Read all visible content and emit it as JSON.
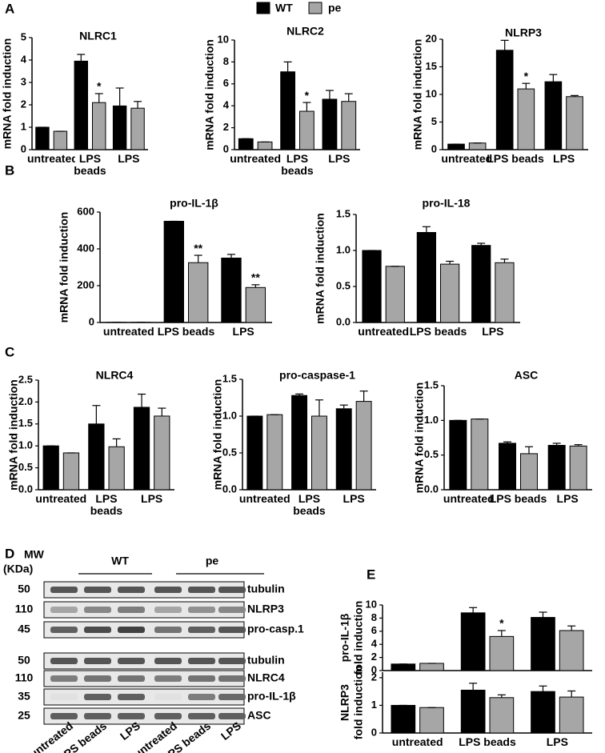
{
  "figure": {
    "panel_labels": [
      "A",
      "B",
      "C",
      "D",
      "E"
    ]
  },
  "chart_data": [
    {
      "type": "bar",
      "title": "NLRC1",
      "ylabel": "mRNA fold induction",
      "categories": [
        "untreated",
        "LPS beads",
        "LPS"
      ],
      "ylim": [
        0,
        5
      ],
      "yticks": [
        0,
        1,
        2,
        3,
        4,
        5
      ],
      "series": [
        {
          "name": "WT",
          "color": "#000000",
          "values": [
            1,
            3.95,
            1.95
          ],
          "errors": [
            0,
            0.3,
            0.8
          ]
        },
        {
          "name": "pe",
          "color": "#a6a6a6",
          "values": [
            0.82,
            2.1,
            1.85
          ],
          "errors": [
            0,
            0.4,
            0.3
          ],
          "labels": [
            null,
            "*",
            null
          ]
        }
      ]
    },
    {
      "type": "bar",
      "title": "NLRC2",
      "ylabel": "mRNA fold induction",
      "categories": [
        "untreated",
        "LPS beads",
        "LPS"
      ],
      "ylim": [
        0,
        10
      ],
      "yticks": [
        0,
        2,
        4,
        6,
        8,
        10
      ],
      "series": [
        {
          "name": "WT",
          "color": "#000000",
          "values": [
            1,
            7.1,
            4.6
          ],
          "errors": [
            0,
            0.9,
            0.8
          ]
        },
        {
          "name": "pe",
          "color": "#a6a6a6",
          "values": [
            0.7,
            3.5,
            4.4
          ],
          "errors": [
            0,
            0.8,
            0.7
          ],
          "labels": [
            null,
            "*",
            null
          ]
        }
      ]
    },
    {
      "type": "bar",
      "title": "NLRP3",
      "ylabel": "mRNA fold induction",
      "categories": [
        "untreated",
        "LPS beads",
        "LPS"
      ],
      "ylim": [
        0,
        20
      ],
      "yticks": [
        0,
        5,
        10,
        15,
        20
      ],
      "series": [
        {
          "name": "WT",
          "color": "#000000",
          "values": [
            1,
            18,
            12.3
          ],
          "errors": [
            0,
            1.8,
            1.3
          ]
        },
        {
          "name": "pe",
          "color": "#a6a6a6",
          "values": [
            1.2,
            11,
            9.6
          ],
          "errors": [
            0,
            1,
            0.2
          ],
          "labels": [
            null,
            "*",
            null
          ]
        }
      ]
    },
    {
      "type": "bar",
      "title": "pro-IL-1β",
      "ylabel": "mRNA fold induction",
      "categories": [
        "untreated",
        "LPS beads",
        "LPS"
      ],
      "ylim": [
        0,
        600
      ],
      "yticks": [
        0,
        200,
        400,
        600
      ],
      "series": [
        {
          "name": "WT",
          "color": "#000000",
          "values": [
            1,
            550,
            350
          ],
          "errors": [
            0,
            0,
            20
          ]
        },
        {
          "name": "pe",
          "color": "#a6a6a6",
          "values": [
            1,
            325,
            190
          ],
          "errors": [
            0,
            40,
            15
          ],
          "labels": [
            null,
            "**",
            "**"
          ]
        }
      ]
    },
    {
      "type": "bar",
      "title": "pro-IL-18",
      "ylabel": "mRNA fold induction",
      "categories": [
        "untreated",
        "LPS beads",
        "LPS"
      ],
      "ylim": [
        0,
        1.5
      ],
      "yticks": [
        {
          "value": 0,
          "label": "0.0"
        },
        0.5,
        {
          "value": 1,
          "label": "1.0"
        },
        1.5
      ],
      "series": [
        {
          "name": "WT",
          "color": "#000000",
          "values": [
            1,
            1.25,
            1.07
          ],
          "errors": [
            0,
            0.08,
            0.03
          ]
        },
        {
          "name": "pe",
          "color": "#a6a6a6",
          "values": [
            0.78,
            0.81,
            0.83
          ],
          "errors": [
            0,
            0.04,
            0.05
          ]
        }
      ]
    },
    {
      "type": "bar",
      "title": "NLRC4",
      "ylabel": "mRNA fold induction",
      "categories": [
        "untreated",
        "LPS beads",
        "LPS"
      ],
      "ylim": [
        0,
        2.5
      ],
      "yticks": [
        {
          "value": 0,
          "label": "0.0"
        },
        0.5,
        {
          "value": 1,
          "label": "1.0"
        },
        1.5,
        {
          "value": 2,
          "label": "2.0"
        },
        2.5
      ],
      "series": [
        {
          "name": "WT",
          "color": "#000000",
          "values": [
            1,
            1.5,
            1.88
          ],
          "errors": [
            0,
            0.42,
            0.3
          ]
        },
        {
          "name": "pe",
          "color": "#a6a6a6",
          "values": [
            0.84,
            0.98,
            1.68
          ],
          "errors": [
            0,
            0.18,
            0.18
          ]
        }
      ]
    },
    {
      "type": "bar",
      "title": "pro-caspase-1",
      "ylabel": "mRNA fold induction",
      "categories": [
        "untreated",
        "LPS beads",
        "LPS"
      ],
      "ylim": [
        0,
        1.5
      ],
      "yticks": [
        {
          "value": 0,
          "label": "0.0"
        },
        0.5,
        {
          "value": 1,
          "label": "1.0"
        },
        1.5
      ],
      "series": [
        {
          "name": "WT",
          "color": "#000000",
          "values": [
            1,
            1.28,
            1.1
          ],
          "errors": [
            0,
            0.02,
            0.05
          ]
        },
        {
          "name": "pe",
          "color": "#a6a6a6",
          "values": [
            1.02,
            1,
            1.2
          ],
          "errors": [
            0,
            0.22,
            0.14
          ]
        }
      ]
    },
    {
      "type": "bar",
      "title": "ASC",
      "ylabel": "mRNA fold induction",
      "categories": [
        "untreated",
        "LPS beads",
        "LPS"
      ],
      "ylim": [
        0,
        1.5
      ],
      "yticks": [
        {
          "value": 0,
          "label": "0.0"
        },
        0.5,
        {
          "value": 1,
          "label": "1.0"
        },
        1.5
      ],
      "series": [
        {
          "name": "WT",
          "color": "#000000",
          "values": [
            1,
            0.67,
            0.64
          ],
          "errors": [
            0,
            0.02,
            0.03
          ]
        },
        {
          "name": "pe",
          "color": "#a6a6a6",
          "values": [
            1.02,
            0.52,
            0.63
          ],
          "errors": [
            0,
            0.1,
            0.02
          ]
        }
      ]
    },
    {
      "type": "bar",
      "ylabel": [
        "pro-IL-1β",
        "fold induction"
      ],
      "ylim": [
        0,
        10
      ],
      "yticks": [
        0,
        2,
        4,
        6,
        8,
        10
      ],
      "series": [
        {
          "name": "WT",
          "color": "#000000",
          "values": [
            1,
            8.8,
            8.1
          ],
          "errors": [
            0,
            0.8,
            0.8
          ]
        },
        {
          "name": "pe",
          "color": "#a6a6a6",
          "values": [
            1.1,
            5.2,
            6.1
          ],
          "errors": [
            0,
            0.9,
            0.7
          ],
          "labels": [
            null,
            "*",
            null
          ]
        }
      ]
    },
    {
      "type": "bar",
      "ylabel": [
        "NLRP3",
        "fold induction"
      ],
      "categories": [
        "untreated",
        "LPS beads",
        "LPS"
      ],
      "ylim": [
        0,
        2.2
      ],
      "yticks": [
        0,
        1,
        2
      ],
      "series": [
        {
          "name": "WT",
          "color": "#000000",
          "values": [
            1,
            1.55,
            1.5
          ],
          "errors": [
            0,
            0.25,
            0.2
          ]
        },
        {
          "name": "pe",
          "color": "#a6a6a6",
          "values": [
            0.92,
            1.28,
            1.3
          ],
          "errors": [
            0,
            0.1,
            0.22
          ]
        }
      ]
    }
  ],
  "blot": {
    "mw_title": "MW",
    "mw_unit": "(KDa)",
    "groups": [
      "WT",
      "pe"
    ],
    "rows": [
      {
        "mw": "50",
        "label": "tubulin"
      },
      {
        "mw": "110",
        "label": "NLRP3"
      },
      {
        "mw": "45",
        "label": "pro-casp.1"
      },
      {
        "mw": "50",
        "label": "tubulin"
      },
      {
        "mw": "110",
        "label": "NLRC4"
      },
      {
        "mw": "35",
        "label": "pro-IL-1β"
      },
      {
        "mw": "25",
        "label": "ASC"
      }
    ],
    "lanes": [
      "untreated",
      "LPS beads",
      "LPS",
      "untreated",
      "LPS beads",
      "LPS"
    ]
  }
}
